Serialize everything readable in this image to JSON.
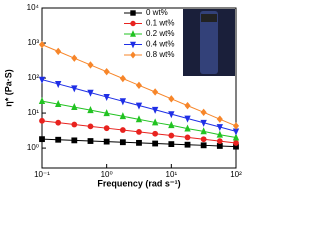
{
  "chart_data": {
    "type": "line",
    "xlabel": "Frequency (rad s⁻¹)",
    "ylabel": "η* (Pa·S)",
    "x": [
      0.1,
      0.178,
      0.316,
      0.562,
      1,
      1.78,
      3.16,
      5.62,
      10,
      17.8,
      31.6,
      56.2,
      100
    ],
    "xlim": [
      0.1,
      100
    ],
    "ylim": [
      0.27,
      10000
    ],
    "xscale": "log",
    "yscale": "log",
    "xticks": [
      {
        "value": 0.1,
        "label": "10⁻¹"
      },
      {
        "value": 1,
        "label": "10⁰"
      },
      {
        "value": 10,
        "label": "10¹"
      },
      {
        "value": 100,
        "label": "10²"
      }
    ],
    "yticks": [
      {
        "value": 1,
        "label": "10⁰"
      },
      {
        "value": 10,
        "label": "10¹"
      },
      {
        "value": 100,
        "label": "10²"
      },
      {
        "value": 1000,
        "label": "10³"
      },
      {
        "value": 10000,
        "label": "10⁴"
      }
    ],
    "legend": "top-center",
    "series": [
      {
        "name": "0 wt%",
        "color": "#000000",
        "marker": "square",
        "values": [
          1.8,
          1.73,
          1.66,
          1.59,
          1.53,
          1.47,
          1.41,
          1.35,
          1.3,
          1.25,
          1.2,
          1.15,
          1.1
        ]
      },
      {
        "name": "0.1 wt%",
        "color": "#e8231f",
        "marker": "circle",
        "values": [
          6,
          5.32,
          4.71,
          4.17,
          3.7,
          3.28,
          2.9,
          2.57,
          2.28,
          2.02,
          1.79,
          1.58,
          1.4
        ]
      },
      {
        "name": "0.2 wt%",
        "color": "#22c322",
        "marker": "triangle-up",
        "values": [
          22,
          18,
          14.8,
          12.1,
          9.9,
          8.1,
          6.6,
          5.4,
          4.5,
          3.6,
          3,
          2.4,
          2
        ]
      },
      {
        "name": "0.4 wt%",
        "color": "#1f2fe6",
        "marker": "triangle-down",
        "values": [
          90,
          67.8,
          51,
          38.4,
          28.9,
          21.8,
          16.4,
          12.4,
          9.3,
          7,
          5.3,
          4,
          3
        ]
      },
      {
        "name": "0.8 wt%",
        "color": "#f7862a",
        "marker": "diamond",
        "values": [
          900,
          577,
          369,
          237,
          152,
          97,
          62,
          40,
          25.5,
          16.3,
          10.5,
          6.7,
          4.3
        ]
      }
    ]
  }
}
